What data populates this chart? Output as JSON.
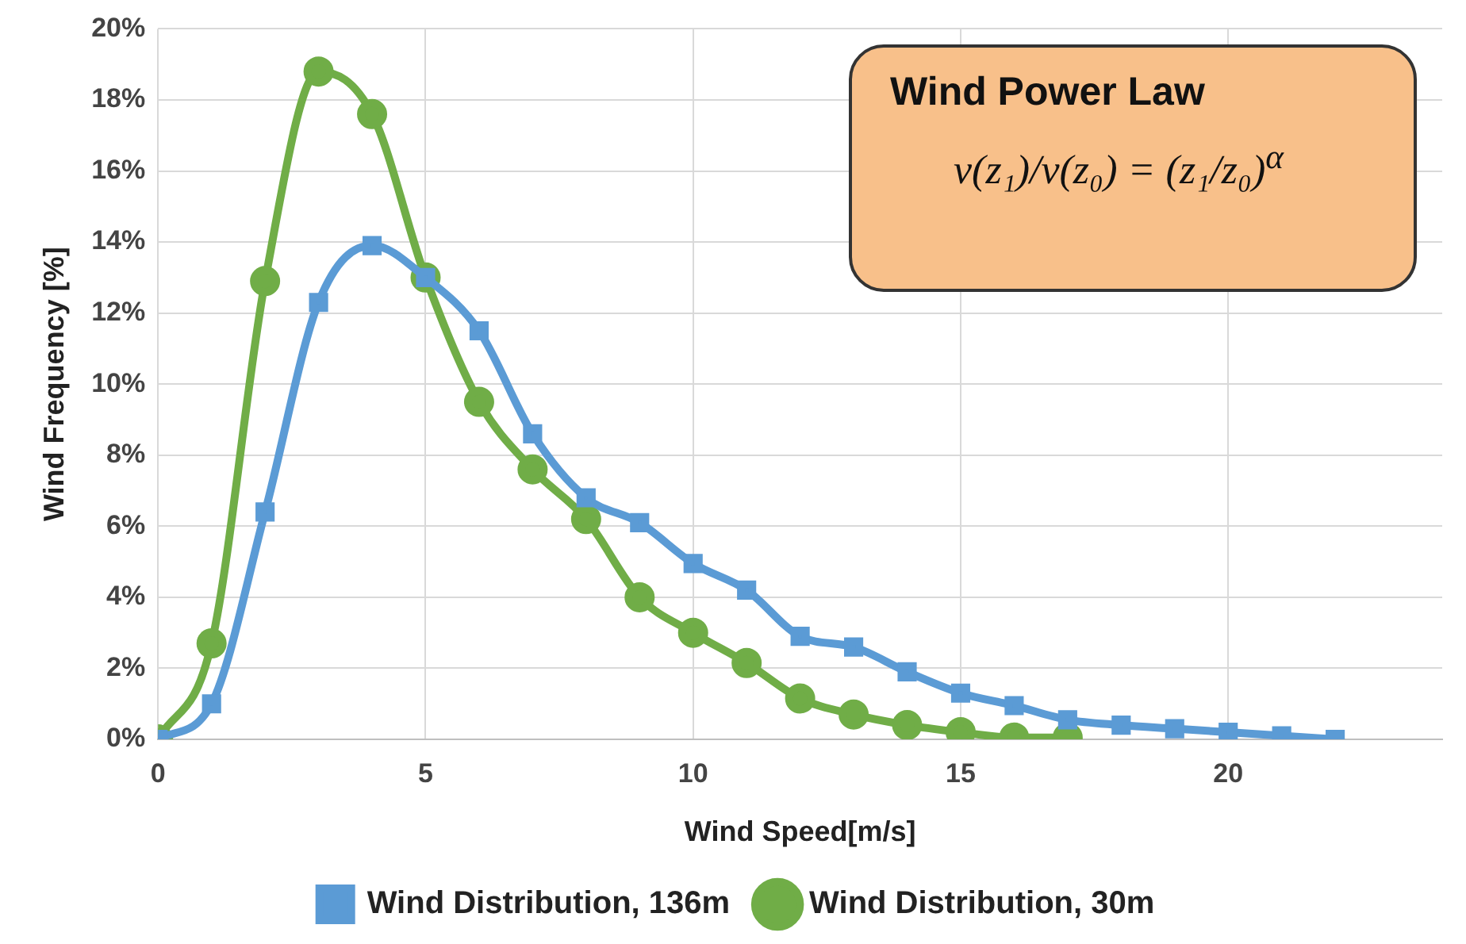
{
  "chart_data": {
    "type": "line",
    "xlabel": "Wind Speed[m/s]",
    "ylabel": "Wind Frequency [%]",
    "xlim": [
      0,
      24
    ],
    "xticks": [
      0,
      5,
      10,
      15,
      20
    ],
    "ylim": [
      0,
      20
    ],
    "yticks": [
      {
        "value": 0,
        "label": "0%"
      },
      {
        "value": 2,
        "label": "2%"
      },
      {
        "value": 4,
        "label": "4%"
      },
      {
        "value": 6,
        "label": "6%"
      },
      {
        "value": 8,
        "label": "8%"
      },
      {
        "value": 10,
        "label": "10%"
      },
      {
        "value": 12,
        "label": "12%"
      },
      {
        "value": 14,
        "label": "14%"
      },
      {
        "value": 16,
        "label": "16%"
      },
      {
        "value": 18,
        "label": "18%"
      },
      {
        "value": 20,
        "label": "20%"
      }
    ],
    "grid": true,
    "legend": "bottom",
    "line_style": "solid",
    "series": [
      {
        "name": "Wind Distribution, 136m",
        "color": "#5b9bd5",
        "marker": "square",
        "x": [
          0,
          1,
          2,
          3,
          4,
          5,
          6,
          7,
          8,
          9,
          10,
          11,
          12,
          13,
          14,
          15,
          16,
          17,
          18,
          19,
          20,
          21,
          22
        ],
        "values": [
          0,
          1.0,
          6.4,
          12.3,
          13.9,
          13.0,
          11.5,
          8.6,
          6.8,
          6.1,
          4.95,
          4.2,
          2.9,
          2.6,
          1.9,
          1.3,
          0.95,
          0.55,
          0.4,
          0.3,
          0.2,
          0.1,
          0
        ]
      },
      {
        "name": "Wind Distribution, 30m",
        "color": "#70ad47",
        "marker": "circle",
        "x": [
          0,
          1,
          2,
          3,
          4,
          5,
          6,
          7,
          8,
          9,
          10,
          11,
          12,
          13,
          14,
          15,
          16,
          17
        ],
        "values": [
          0,
          2.7,
          12.9,
          18.8,
          17.6,
          13.0,
          9.5,
          7.6,
          6.2,
          4.0,
          3.0,
          2.15,
          1.15,
          0.7,
          0.4,
          0.2,
          0.05,
          0.05
        ]
      }
    ],
    "annotations": [
      "Wind Power Law",
      "v(z₁)/v(z₀) = (z₁/z₀)$^{α}$"
    ]
  }
}
